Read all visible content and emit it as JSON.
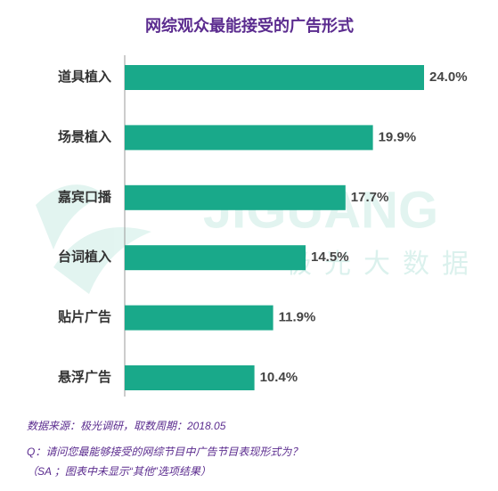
{
  "chart_data": {
    "type": "bar",
    "orientation": "horizontal",
    "title": "网综观众最能接受的广告形式",
    "categories": [
      "道具植入",
      "场景植入",
      "嘉宾口播",
      "台词植入",
      "贴片广告",
      "悬浮广告"
    ],
    "values": [
      24.0,
      19.9,
      17.7,
      14.5,
      11.9,
      10.4
    ],
    "value_labels": [
      "24.0%",
      "19.9%",
      "17.7%",
      "14.5%",
      "11.9%",
      "10.4%"
    ],
    "color": "#19a98a",
    "watermark": [
      "JIGUANG",
      "极光大数据"
    ],
    "notes": [
      "数据来源：极光调研，取数周期：2018.05",
      "Q：请问您最能够接受的网综节目中广告节目表现形式为？",
      "（SA ；图表中未显示“其他”选项结果）"
    ]
  }
}
